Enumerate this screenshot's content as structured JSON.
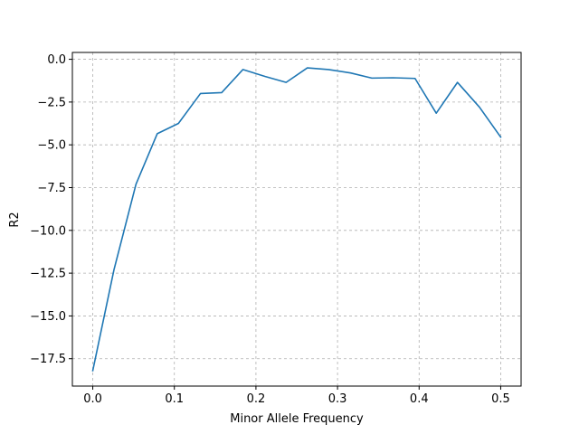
{
  "chart_data": {
    "type": "line",
    "title": "",
    "xlabel": "Minor Allele Frequency",
    "ylabel": "R2",
    "xlim": [
      -0.025,
      0.525
    ],
    "ylim": [
      -19.1,
      0.4
    ],
    "grid": true,
    "legend": "none",
    "x_ticks": [
      0.0,
      0.1,
      0.2,
      0.3,
      0.4,
      0.5
    ],
    "x_tick_labels": [
      "0.0",
      "0.1",
      "0.2",
      "0.3",
      "0.4",
      "0.5"
    ],
    "y_ticks": [
      0.0,
      -2.5,
      -5.0,
      -7.5,
      -10.0,
      -12.5,
      -15.0,
      -17.5
    ],
    "y_tick_labels": [
      "0.0",
      "−2.5",
      "−5.0",
      "−7.5",
      "−10.0",
      "−12.5",
      "−15.0",
      "−17.5"
    ],
    "colors": {
      "line": "#1f77b4",
      "grid": "#b0b0b0",
      "axes": "#000000"
    },
    "series": [
      {
        "x": [
          0.0,
          0.026,
          0.053,
          0.079,
          0.105,
          0.132,
          0.158,
          0.184,
          0.211,
          0.237,
          0.263,
          0.289,
          0.316,
          0.342,
          0.368,
          0.395,
          0.421,
          0.447,
          0.474,
          0.5
        ],
        "values": [
          -18.2,
          -12.3,
          -7.3,
          -4.35,
          -3.75,
          -2.0,
          -1.95,
          -0.6,
          -1.0,
          -1.35,
          -0.5,
          -0.6,
          -0.8,
          -1.1,
          -1.08,
          -1.12,
          -3.15,
          -1.35,
          -2.8,
          -4.55
        ]
      }
    ]
  }
}
